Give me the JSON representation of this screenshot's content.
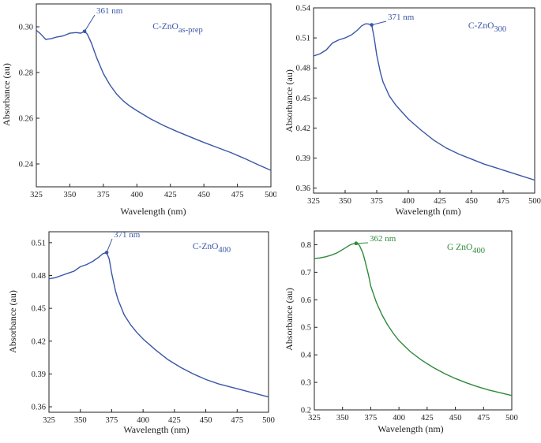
{
  "chart_data": [
    {
      "type": "line",
      "label_main": "C-ZnO",
      "label_sub": "as-prep",
      "peak_label": "361 nm",
      "peak": [
        361,
        0.298
      ],
      "xlabel": "Wavelength (nm)",
      "ylabel": "Absorbance (au)",
      "xlim": [
        325,
        500
      ],
      "ylim": [
        0.23,
        0.31
      ],
      "xticks": [
        325,
        350,
        375,
        400,
        425,
        450,
        475,
        500
      ],
      "yticks": [
        0.24,
        0.26,
        0.28,
        0.3
      ],
      "ytick_labels": [
        "0.24",
        "0.26",
        "0.28",
        "0.30"
      ],
      "color": "#3a56a8",
      "series": [
        {
          "x": [
            325,
            328,
            332,
            336,
            340,
            345,
            350,
            355,
            358,
            361,
            363,
            366,
            370,
            375,
            380,
            385,
            390,
            395,
            400,
            410,
            420,
            430,
            440,
            450,
            460,
            470,
            480,
            490,
            500
          ],
          "y": [
            0.2985,
            0.297,
            0.2945,
            0.2948,
            0.2955,
            0.296,
            0.2972,
            0.2975,
            0.2972,
            0.298,
            0.2968,
            0.293,
            0.2865,
            0.2795,
            0.2745,
            0.2705,
            0.2675,
            0.2652,
            0.2633,
            0.2598,
            0.2568,
            0.2542,
            0.2518,
            0.2494,
            0.2472,
            0.245,
            0.2425,
            0.2398,
            0.2372
          ]
        }
      ]
    },
    {
      "type": "line",
      "label_main": "C-ZnO",
      "label_sub": "300",
      "peak_label": "371 nm",
      "peak": [
        371,
        0.523
      ],
      "xlabel": "Wavelength (nm)",
      "ylabel": "Absorbance (au)",
      "xlim": [
        325,
        500
      ],
      "ylim": [
        0.355,
        0.54
      ],
      "xticks": [
        325,
        350,
        375,
        400,
        425,
        450,
        475,
        500
      ],
      "yticks": [
        0.36,
        0.39,
        0.42,
        0.45,
        0.48,
        0.51,
        0.54
      ],
      "ytick_labels": [
        "0.36",
        "0.39",
        "0.42",
        "0.45",
        "0.48",
        "0.51",
        "0.54"
      ],
      "color": "#3a56a8",
      "series": [
        {
          "x": [
            325,
            330,
            335,
            340,
            345,
            350,
            355,
            360,
            363,
            366,
            368,
            371,
            373,
            375,
            378,
            380,
            385,
            390,
            395,
            400,
            410,
            420,
            430,
            440,
            450,
            460,
            470,
            480,
            490,
            500
          ],
          "y": [
            0.492,
            0.494,
            0.498,
            0.505,
            0.508,
            0.51,
            0.513,
            0.518,
            0.522,
            0.524,
            0.524,
            0.523,
            0.51,
            0.493,
            0.475,
            0.466,
            0.452,
            0.443,
            0.436,
            0.429,
            0.418,
            0.408,
            0.4,
            0.394,
            0.389,
            0.384,
            0.38,
            0.376,
            0.372,
            0.368
          ]
        }
      ]
    },
    {
      "type": "line",
      "label_main": "C-ZnO",
      "label_sub": "400",
      "peak_label": "371 nm",
      "peak": [
        371,
        0.501
      ],
      "xlabel": "Wavelength (nm)",
      "ylabel": "Absorbance (au)",
      "xlim": [
        325,
        500
      ],
      "ylim": [
        0.355,
        0.52
      ],
      "xticks": [
        325,
        350,
        375,
        400,
        425,
        450,
        475,
        500
      ],
      "yticks": [
        0.36,
        0.39,
        0.42,
        0.45,
        0.48,
        0.51
      ],
      "ytick_labels": [
        "0.36",
        "0.39",
        "0.42",
        "0.45",
        "0.48",
        "0.51"
      ],
      "color": "#3a56a8",
      "series": [
        {
          "x": [
            325,
            330,
            335,
            340,
            345,
            350,
            355,
            360,
            365,
            368,
            371,
            373,
            375,
            378,
            380,
            385,
            390,
            395,
            400,
            410,
            420,
            430,
            440,
            450,
            460,
            470,
            480,
            490,
            500
          ],
          "y": [
            0.477,
            0.478,
            0.48,
            0.482,
            0.484,
            0.488,
            0.49,
            0.493,
            0.497,
            0.5,
            0.501,
            0.495,
            0.482,
            0.466,
            0.458,
            0.444,
            0.435,
            0.428,
            0.422,
            0.412,
            0.403,
            0.396,
            0.39,
            0.385,
            0.381,
            0.378,
            0.375,
            0.372,
            0.369
          ]
        }
      ]
    },
    {
      "type": "line",
      "label_main": "G ZnO",
      "label_sub": "400",
      "peak_label": "362 nm",
      "peak": [
        362,
        0.805
      ],
      "xlabel": "Wavelength (nm)",
      "ylabel": "Absorbance (au)",
      "xlim": [
        325,
        500
      ],
      "ylim": [
        0.2,
        0.85
      ],
      "xticks": [
        325,
        350,
        375,
        400,
        425,
        450,
        475,
        500
      ],
      "yticks": [
        0.2,
        0.3,
        0.4,
        0.5,
        0.6,
        0.7,
        0.8
      ],
      "ytick_labels": [
        "0.2",
        "0.3",
        "0.4",
        "0.5",
        "0.6",
        "0.7",
        "0.8"
      ],
      "color": "#2e8a3a",
      "series": [
        {
          "x": [
            325,
            330,
            335,
            340,
            345,
            350,
            355,
            358,
            362,
            365,
            368,
            370,
            373,
            375,
            380,
            385,
            390,
            395,
            400,
            410,
            420,
            430,
            440,
            450,
            460,
            470,
            480,
            490,
            500
          ],
          "y": [
            0.75,
            0.752,
            0.756,
            0.762,
            0.77,
            0.782,
            0.795,
            0.802,
            0.805,
            0.798,
            0.77,
            0.74,
            0.69,
            0.65,
            0.59,
            0.545,
            0.508,
            0.478,
            0.452,
            0.412,
            0.381,
            0.355,
            0.333,
            0.314,
            0.298,
            0.284,
            0.272,
            0.262,
            0.252
          ]
        }
      ]
    }
  ]
}
